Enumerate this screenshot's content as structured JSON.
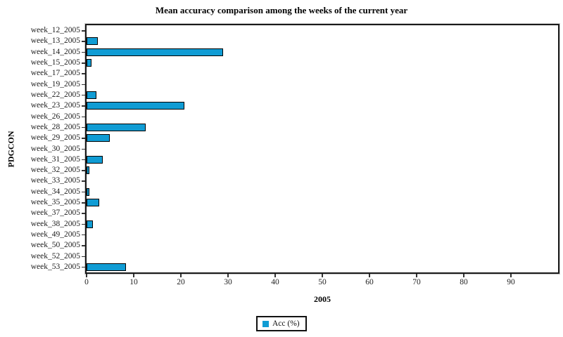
{
  "chart_data": {
    "type": "bar",
    "orientation": "horizontal",
    "title": "Mean accuracy comparison among the weeks of the current year",
    "xlabel": "2005",
    "ylabel": "PDGCON",
    "xlim": [
      0,
      100
    ],
    "x_ticks": [
      0,
      10,
      20,
      30,
      40,
      50,
      60,
      70,
      80,
      90
    ],
    "grid": false,
    "categories": [
      "week_12_2005",
      "week_13_2005",
      "week_14_2005",
      "week_15_2005",
      "week_17_2005",
      "week_19_2005",
      "week_22_2005",
      "week_23_2005",
      "week_26_2005",
      "week_28_2005",
      "week_29_2005",
      "week_30_2005",
      "week_31_2005",
      "week_32_2005",
      "week_33_2005",
      "week_34_2005",
      "week_35_2005",
      "week_37_2005",
      "week_38_2005",
      "week_49_2005",
      "week_50_2005",
      "week_52_2005",
      "week_53_2005"
    ],
    "series": [
      {
        "name": "Acc (%)",
        "values": [
          0,
          2.4,
          28.9,
          1.0,
          0,
          0,
          2.1,
          20.8,
          0,
          12.6,
          4.9,
          0,
          3.4,
          0.6,
          0,
          0.6,
          2.7,
          0,
          1.3,
          0,
          0,
          0,
          8.4
        ]
      }
    ],
    "legend": {
      "position": "bottom-center",
      "entries": [
        {
          "label": "Acc (%)",
          "color": "#109CD4"
        }
      ]
    },
    "colors": {
      "bar_fill": "#109CD4",
      "bar_border": "#000000",
      "axis": "#1a1a1a",
      "text": "#222222",
      "background": "#ffffff"
    }
  }
}
